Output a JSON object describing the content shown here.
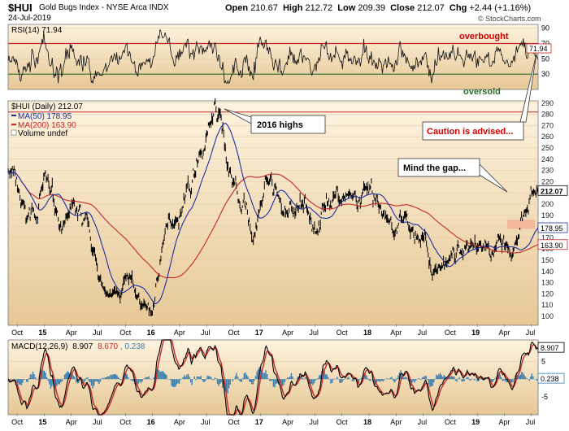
{
  "header": {
    "ticker": "$HUI",
    "description": "Gold Bugs Index - NYSE Arca  INDX",
    "date": "24-Jul-2019",
    "open_label": "Open",
    "open": "210.67",
    "high_label": "High",
    "high": "212.72",
    "low_label": "Low",
    "low": "209.39",
    "close_label": "Close",
    "close": "212.07",
    "chg_label": "Chg",
    "chg": "+2.44 (+1.16%)",
    "watermark": "© StockCharts.com"
  },
  "colors": {
    "background_gradient_top": "#fdf3df",
    "background_gradient_bottom": "#e8c99a",
    "price": "#000000",
    "ma50": "#1f2fa0",
    "ma200": "#c62828",
    "rsi_band_line": "#c62828",
    "oversold_line": "#2e6b2e",
    "annotation_red": "#d00000",
    "gap_box": "#f4b39b",
    "macd_histogram": "#3b7fb0"
  },
  "chart_data": [
    {
      "type": "line",
      "panel": "rsi",
      "legend": "RSI(14) 71.94",
      "series": [
        {
          "name": "RSI(14)",
          "last": 71.94
        }
      ],
      "yticks": [
        30,
        50,
        70,
        90
      ],
      "ylim": [
        10,
        95
      ],
      "levels": {
        "overbought": 70,
        "oversold": 30
      },
      "last_value_label": "71.94",
      "annotations": {
        "overbought": "overbought",
        "oversold": "oversold"
      }
    },
    {
      "type": "line",
      "panel": "price",
      "legend": [
        {
          "name": "$HUI (Daily)",
          "last": 212.07,
          "text": "$HUI (Daily) 212.07"
        },
        {
          "name": "MA(50)",
          "last": 178.95,
          "text": "MA(50) 178.95"
        },
        {
          "name": "MA(200)",
          "last": 163.9,
          "text": "MA(200) 163.90"
        },
        {
          "name": "Volume",
          "text": "Volume undef"
        }
      ],
      "yticks": [
        100,
        110,
        120,
        130,
        140,
        150,
        160,
        170,
        180,
        190,
        200,
        210,
        220,
        230,
        240,
        250,
        260,
        270,
        280,
        290
      ],
      "ylim": [
        92,
        292
      ],
      "resistance_level": 282,
      "x_labels": [
        "Oct",
        "15",
        "Apr",
        "Jul",
        "Oct",
        "16",
        "Apr",
        "Jul",
        "Oct",
        "17",
        "Apr",
        "Jul",
        "Oct",
        "18",
        "Apr",
        "Jul",
        "Oct",
        "19",
        "Apr",
        "Jul"
      ],
      "x_label_bold": [
        "15",
        "16",
        "17",
        "18",
        "19"
      ],
      "price_key_points": [
        [
          "2014-09",
          235
        ],
        [
          "2014-11",
          180
        ],
        [
          "2015-01",
          215
        ],
        [
          "2015-03",
          185
        ],
        [
          "2015-05",
          185
        ],
        [
          "2015-07",
          140
        ],
        [
          "2015-08",
          110
        ],
        [
          "2015-10",
          130
        ],
        [
          "2015-12",
          110
        ],
        [
          "2016-01",
          100
        ],
        [
          "2016-02",
          160
        ],
        [
          "2016-03",
          185
        ],
        [
          "2016-04",
          200
        ],
        [
          "2016-06",
          240
        ],
        [
          "2016-08",
          280
        ],
        [
          "2016-09",
          255
        ],
        [
          "2016-10",
          220
        ],
        [
          "2016-12",
          170
        ],
        [
          "2017-02",
          220
        ],
        [
          "2017-03",
          195
        ],
        [
          "2017-05",
          200
        ],
        [
          "2017-07",
          190
        ],
        [
          "2017-09",
          210
        ],
        [
          "2017-12",
          200
        ],
        [
          "2018-01",
          205
        ],
        [
          "2018-03",
          185
        ],
        [
          "2018-05",
          180
        ],
        [
          "2018-07",
          170
        ],
        [
          "2018-08",
          140
        ],
        [
          "2018-10",
          150
        ],
        [
          "2018-12",
          165
        ],
        [
          "2019-02",
          170
        ],
        [
          "2019-04",
          160
        ],
        [
          "2019-05",
          150
        ],
        [
          "2019-06",
          175
        ],
        [
          "2019-07",
          212.07
        ]
      ],
      "ma50_last": 178.95,
      "ma200_last": 163.9,
      "last_value_labels": {
        "close": "212.07",
        "ma50": "178.95",
        "ma200": "163.90"
      },
      "annotations": {
        "highs": "2016 highs",
        "gap": "Mind the gap...",
        "caution": "Caution is advised..."
      }
    },
    {
      "type": "line",
      "panel": "macd",
      "legend_prefix": "MACD(12,26,9)",
      "macd": 8.907,
      "signal": 8.67,
      "histogram": 0.238,
      "legend_values": {
        "macd": "8.907",
        "signal": "8.670",
        "histogram": "0.238"
      },
      "yticks": [
        5,
        0,
        -5
      ],
      "ylim": [
        -10,
        11
      ],
      "last_value_labels": {
        "macd": "8.907",
        "histogram": "0.238"
      },
      "x_labels": [
        "Oct",
        "15",
        "Apr",
        "Jul",
        "Oct",
        "16",
        "Apr",
        "Jul",
        "Oct",
        "17",
        "Apr",
        "Jul",
        "Oct",
        "18",
        "Apr",
        "Jul",
        "Oct",
        "19",
        "Apr",
        "Jul"
      ]
    }
  ]
}
